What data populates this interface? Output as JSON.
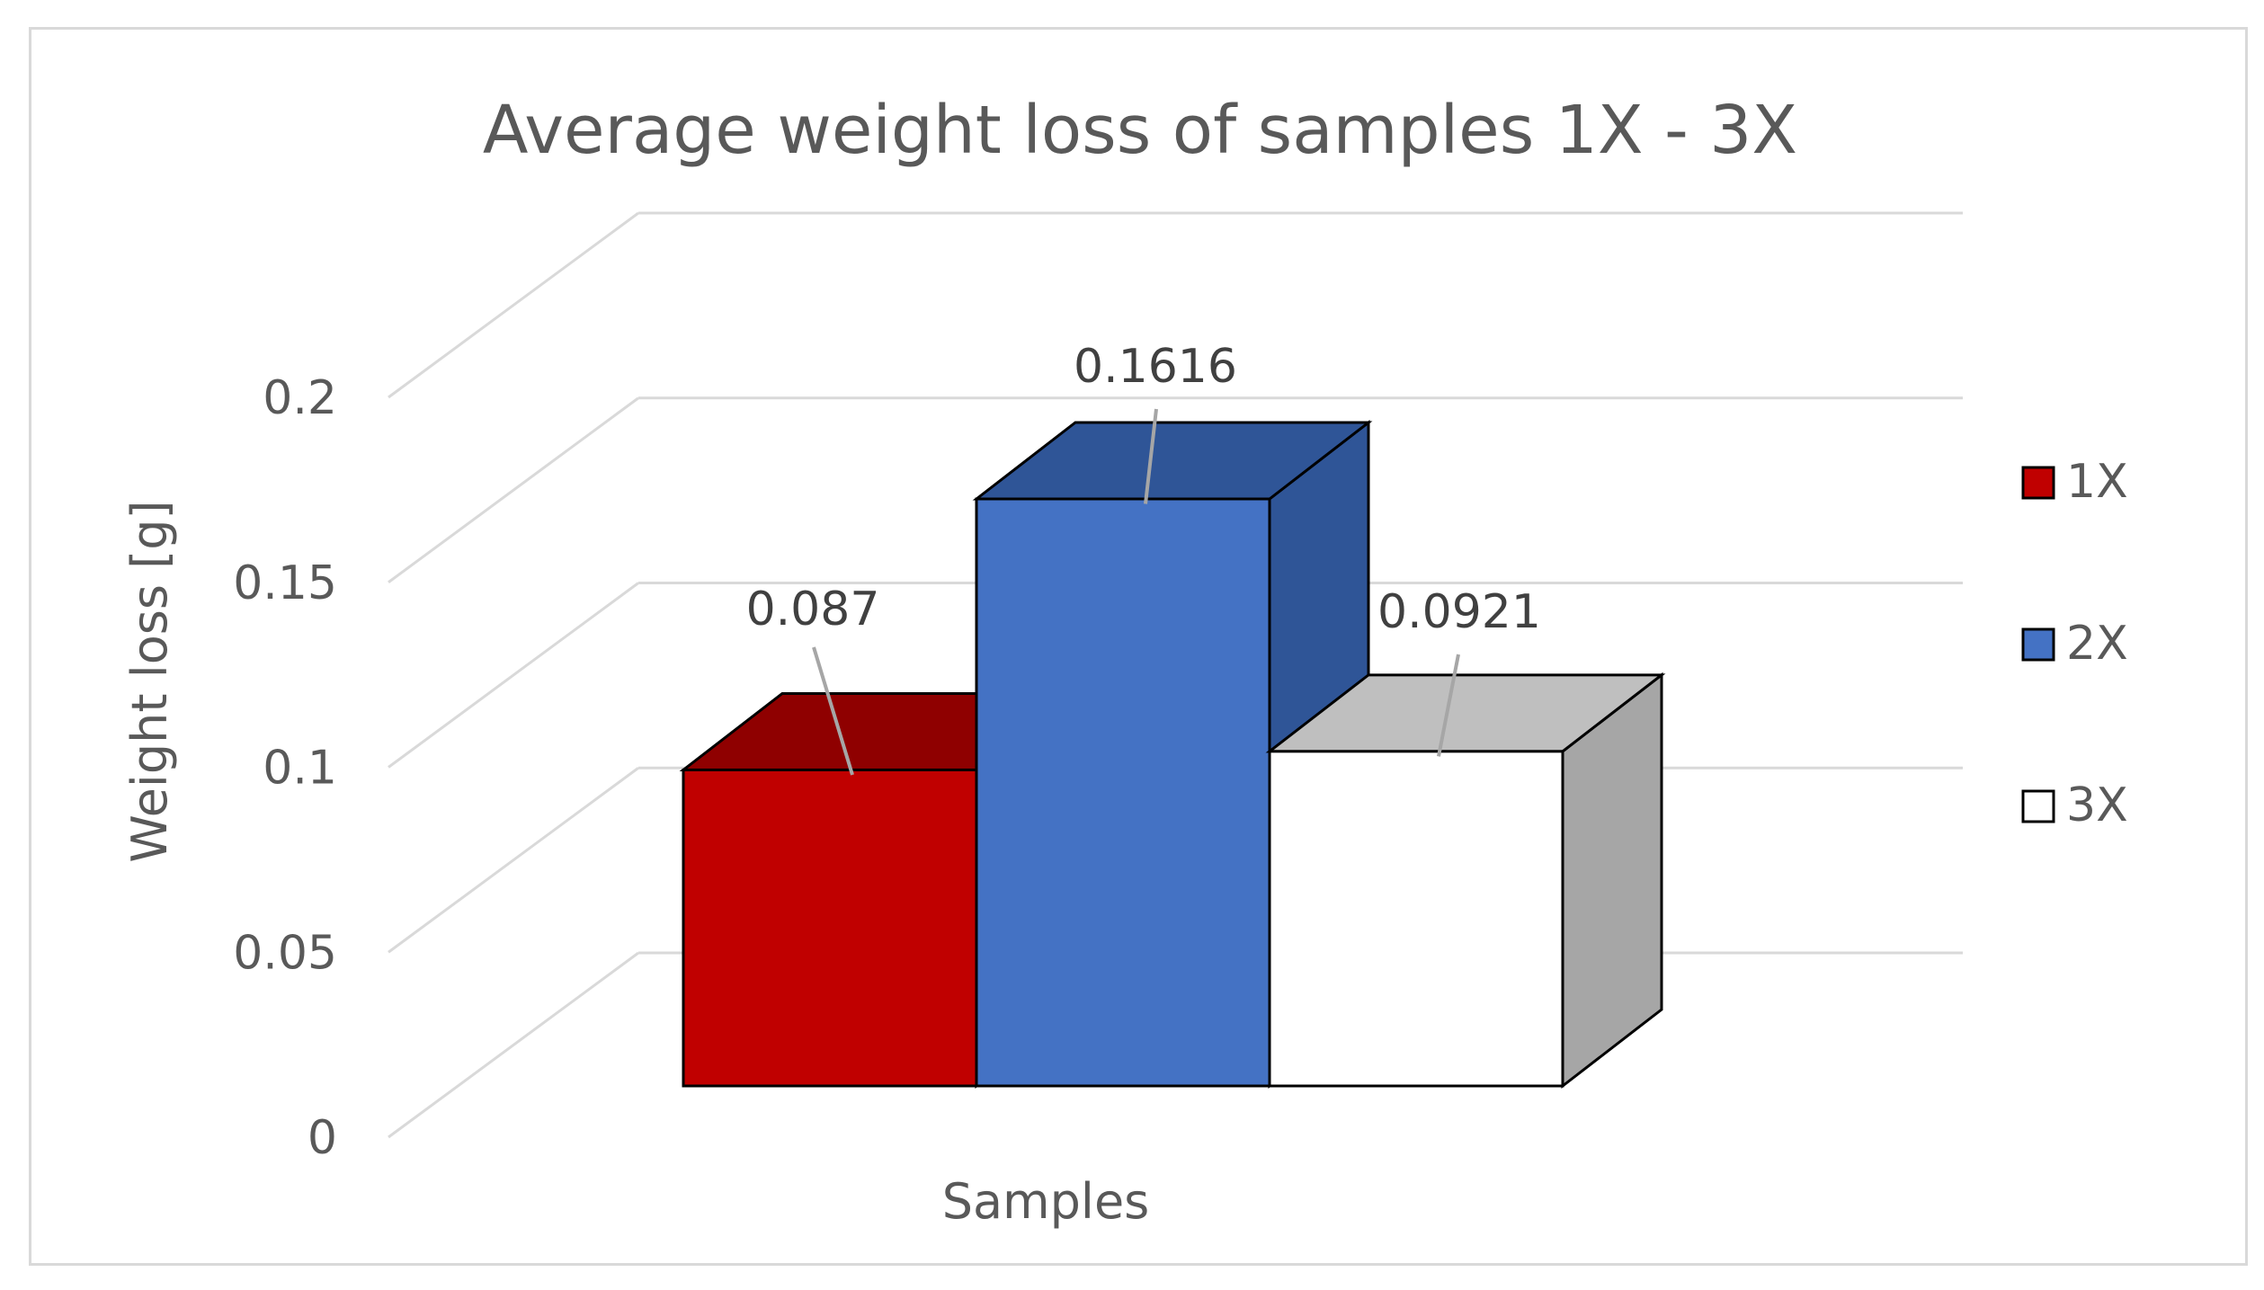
{
  "chart_data": {
    "type": "bar",
    "title": "Average weight loss of samples 1X - 3X",
    "xlabel": "Samples",
    "ylabel": "Weight loss [g]",
    "categories": [
      ""
    ],
    "series": [
      {
        "name": "1X",
        "values": [
          0.087
        ],
        "label": "0.087",
        "color": "#c00000",
        "top_color": "#8f0000",
        "side_color": "#8f0000"
      },
      {
        "name": "2X",
        "values": [
          0.1616
        ],
        "label": "0.1616",
        "color": "#4472c4",
        "top_color": "#2f5597",
        "side_color": "#2f5597"
      },
      {
        "name": "3X",
        "values": [
          0.0921
        ],
        "label": "0.0921",
        "color": "#ffffff",
        "top_color": "#bfbfbf",
        "side_color": "#a6a6a6"
      }
    ],
    "ylim": [
      0,
      0.2
    ],
    "yticks": [
      {
        "value": 0,
        "label": "0"
      },
      {
        "value": 0.05,
        "label": "0.05"
      },
      {
        "value": 0.1,
        "label": "0.1"
      },
      {
        "value": 0.15,
        "label": "0.15"
      },
      {
        "value": 0.2,
        "label": "0.2"
      }
    ],
    "grid": true,
    "legend_position": "right",
    "projection": "3d"
  }
}
